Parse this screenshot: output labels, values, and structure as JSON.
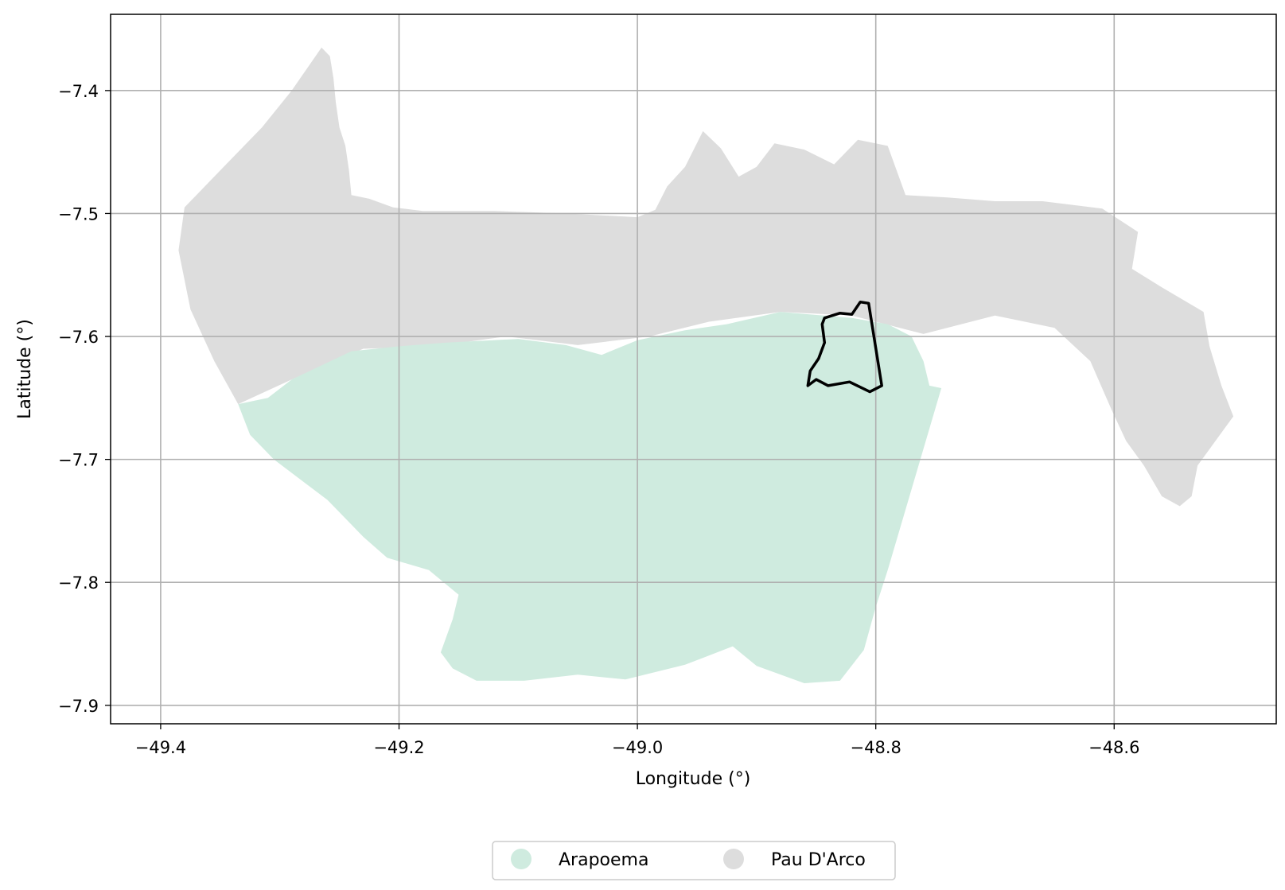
{
  "chart_data": {
    "type": "map",
    "title": "",
    "xlabel": "Longitude (°)",
    "ylabel": "Latitude (°)",
    "xlim": [
      -49.442,
      -48.464
    ],
    "ylim": [
      -7.915,
      -7.338
    ],
    "x_ticks": [
      -49.4,
      -49.2,
      -49.0,
      -48.8,
      -48.6
    ],
    "x_tick_labels": [
      "−49.4",
      "−49.2",
      "−49.0",
      "−48.8",
      "−48.6"
    ],
    "y_ticks": [
      -7.4,
      -7.5,
      -7.6,
      -7.7,
      -7.8,
      -7.9
    ],
    "y_tick_labels": [
      "−7.4",
      "−7.5",
      "−7.6",
      "−7.7",
      "−7.8",
      "−7.9"
    ],
    "grid": true,
    "legend_position": "bottom-center",
    "colors": {
      "Arapoema": "#cfebdf",
      "Pau D'Arco": "#dddddd",
      "grid": "#b0b0b0",
      "highlight": "#000000"
    },
    "regions": [
      {
        "name": "Pau D'Arco",
        "polygon": [
          [
            -49.265,
            -7.365
          ],
          [
            -49.258,
            -7.372
          ],
          [
            -49.255,
            -7.39
          ],
          [
            -49.253,
            -7.41
          ],
          [
            -49.25,
            -7.43
          ],
          [
            -49.245,
            -7.445
          ],
          [
            -49.242,
            -7.465
          ],
          [
            -49.24,
            -7.485
          ],
          [
            -49.225,
            -7.488
          ],
          [
            -49.205,
            -7.495
          ],
          [
            -49.18,
            -7.498
          ],
          [
            -49.12,
            -7.498
          ],
          [
            -49.06,
            -7.5
          ],
          [
            -49.0,
            -7.503
          ],
          [
            -48.985,
            -7.497
          ],
          [
            -48.975,
            -7.478
          ],
          [
            -48.96,
            -7.462
          ],
          [
            -48.945,
            -7.433
          ],
          [
            -48.93,
            -7.447
          ],
          [
            -48.915,
            -7.47
          ],
          [
            -48.9,
            -7.462
          ],
          [
            -48.885,
            -7.443
          ],
          [
            -48.86,
            -7.448
          ],
          [
            -48.835,
            -7.46
          ],
          [
            -48.815,
            -7.44
          ],
          [
            -48.79,
            -7.445
          ],
          [
            -48.775,
            -7.485
          ],
          [
            -48.74,
            -7.487
          ],
          [
            -48.7,
            -7.49
          ],
          [
            -48.66,
            -7.49
          ],
          [
            -48.61,
            -7.496
          ],
          [
            -48.58,
            -7.515
          ],
          [
            -48.585,
            -7.545
          ],
          [
            -48.56,
            -7.56
          ],
          [
            -48.525,
            -7.58
          ],
          [
            -48.52,
            -7.608
          ],
          [
            -48.51,
            -7.64
          ],
          [
            -48.5,
            -7.665
          ],
          [
            -48.515,
            -7.685
          ],
          [
            -48.53,
            -7.705
          ],
          [
            -48.535,
            -7.73
          ],
          [
            -48.545,
            -7.738
          ],
          [
            -48.56,
            -7.73
          ],
          [
            -48.575,
            -7.705
          ],
          [
            -48.59,
            -7.685
          ],
          [
            -48.602,
            -7.66
          ],
          [
            -48.62,
            -7.62
          ],
          [
            -48.65,
            -7.593
          ],
          [
            -48.7,
            -7.583
          ],
          [
            -48.76,
            -7.598
          ],
          [
            -48.82,
            -7.583
          ],
          [
            -48.88,
            -7.58
          ],
          [
            -48.94,
            -7.588
          ],
          [
            -48.99,
            -7.6
          ],
          [
            -49.05,
            -7.607
          ],
          [
            -49.11,
            -7.6
          ],
          [
            -49.17,
            -7.608
          ],
          [
            -49.23,
            -7.61
          ],
          [
            -49.29,
            -7.635
          ],
          [
            -49.335,
            -7.655
          ],
          [
            -49.355,
            -7.62
          ],
          [
            -49.375,
            -7.578
          ],
          [
            -49.385,
            -7.53
          ],
          [
            -49.38,
            -7.495
          ],
          [
            -49.35,
            -7.465
          ],
          [
            -49.315,
            -7.43
          ],
          [
            -49.29,
            -7.4
          ]
        ]
      },
      {
        "name": "Arapoema",
        "polygon": [
          [
            -49.335,
            -7.655
          ],
          [
            -49.31,
            -7.65
          ],
          [
            -49.29,
            -7.635
          ],
          [
            -49.24,
            -7.612
          ],
          [
            -49.2,
            -7.608
          ],
          [
            -49.16,
            -7.605
          ],
          [
            -49.1,
            -7.602
          ],
          [
            -49.06,
            -7.607
          ],
          [
            -49.03,
            -7.615
          ],
          [
            -49.0,
            -7.603
          ],
          [
            -48.96,
            -7.595
          ],
          [
            -48.925,
            -7.59
          ],
          [
            -48.88,
            -7.58
          ],
          [
            -48.82,
            -7.585
          ],
          [
            -48.79,
            -7.59
          ],
          [
            -48.77,
            -7.6
          ],
          [
            -48.76,
            -7.62
          ],
          [
            -48.755,
            -7.64
          ],
          [
            -48.745,
            -7.642
          ],
          [
            -48.79,
            -7.79
          ],
          [
            -48.8,
            -7.82
          ],
          [
            -48.81,
            -7.855
          ],
          [
            -48.83,
            -7.88
          ],
          [
            -48.86,
            -7.882
          ],
          [
            -48.9,
            -7.868
          ],
          [
            -48.92,
            -7.852
          ],
          [
            -48.96,
            -7.867
          ],
          [
            -49.01,
            -7.879
          ],
          [
            -49.05,
            -7.875
          ],
          [
            -49.095,
            -7.88
          ],
          [
            -49.135,
            -7.88
          ],
          [
            -49.155,
            -7.87
          ],
          [
            -49.165,
            -7.857
          ],
          [
            -49.155,
            -7.83
          ],
          [
            -49.15,
            -7.81
          ],
          [
            -49.175,
            -7.79
          ],
          [
            -49.21,
            -7.78
          ],
          [
            -49.23,
            -7.763
          ],
          [
            -49.26,
            -7.733
          ],
          [
            -49.305,
            -7.7
          ],
          [
            -49.325,
            -7.68
          ]
        ]
      }
    ],
    "highlight_boundary": [
      [
        -48.843,
        -7.585
      ],
      [
        -48.83,
        -7.581
      ],
      [
        -48.82,
        -7.582
      ],
      [
        -48.813,
        -7.572
      ],
      [
        -48.806,
        -7.573
      ],
      [
        -48.795,
        -7.64
      ],
      [
        -48.805,
        -7.645
      ],
      [
        -48.822,
        -7.637
      ],
      [
        -48.84,
        -7.64
      ],
      [
        -48.85,
        -7.635
      ],
      [
        -48.857,
        -7.64
      ],
      [
        -48.855,
        -7.628
      ],
      [
        -48.848,
        -7.618
      ],
      [
        -48.843,
        -7.605
      ],
      [
        -48.845,
        -7.59
      ]
    ],
    "legend": [
      {
        "label": "Arapoema",
        "color": "#cfebdf"
      },
      {
        "label": "Pau D'Arco",
        "color": "#dddddd"
      }
    ]
  }
}
